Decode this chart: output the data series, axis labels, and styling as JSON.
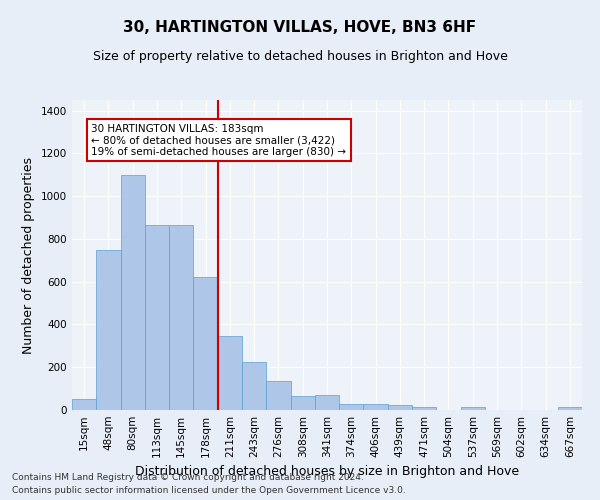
{
  "title": "30, HARTINGTON VILLAS, HOVE, BN3 6HF",
  "subtitle": "Size of property relative to detached houses in Brighton and Hove",
  "xlabel": "Distribution of detached houses by size in Brighton and Hove",
  "ylabel": "Number of detached properties",
  "footnote1": "Contains HM Land Registry data © Crown copyright and database right 2024.",
  "footnote2": "Contains public sector information licensed under the Open Government Licence v3.0.",
  "categories": [
    "15sqm",
    "48sqm",
    "80sqm",
    "113sqm",
    "145sqm",
    "178sqm",
    "211sqm",
    "243sqm",
    "276sqm",
    "308sqm",
    "341sqm",
    "374sqm",
    "406sqm",
    "439sqm",
    "471sqm",
    "504sqm",
    "537sqm",
    "569sqm",
    "602sqm",
    "634sqm",
    "667sqm"
  ],
  "values": [
    50,
    750,
    1100,
    865,
    865,
    620,
    345,
    225,
    135,
    65,
    70,
    30,
    30,
    22,
    15,
    0,
    12,
    0,
    0,
    0,
    12
  ],
  "bar_color": "#aec6e8",
  "bar_edgecolor": "#5a9fd4",
  "vline_x": 5.5,
  "vline_color": "#cc0000",
  "annotation_text": "30 HARTINGTON VILLAS: 183sqm\n← 80% of detached houses are smaller (3,422)\n19% of semi-detached houses are larger (830) →",
  "annotation_box_color": "#ffffff",
  "annotation_box_edgecolor": "#cc0000",
  "ylim": [
    0,
    1450
  ],
  "yticks": [
    0,
    200,
    400,
    600,
    800,
    1000,
    1200,
    1400
  ],
  "bg_color": "#e8eef7",
  "plot_bg_color": "#eef2f9",
  "grid_color": "#ffffff",
  "title_fontsize": 11,
  "subtitle_fontsize": 9,
  "axis_label_fontsize": 9,
  "tick_fontsize": 7.5,
  "footnote_fontsize": 6.5
}
